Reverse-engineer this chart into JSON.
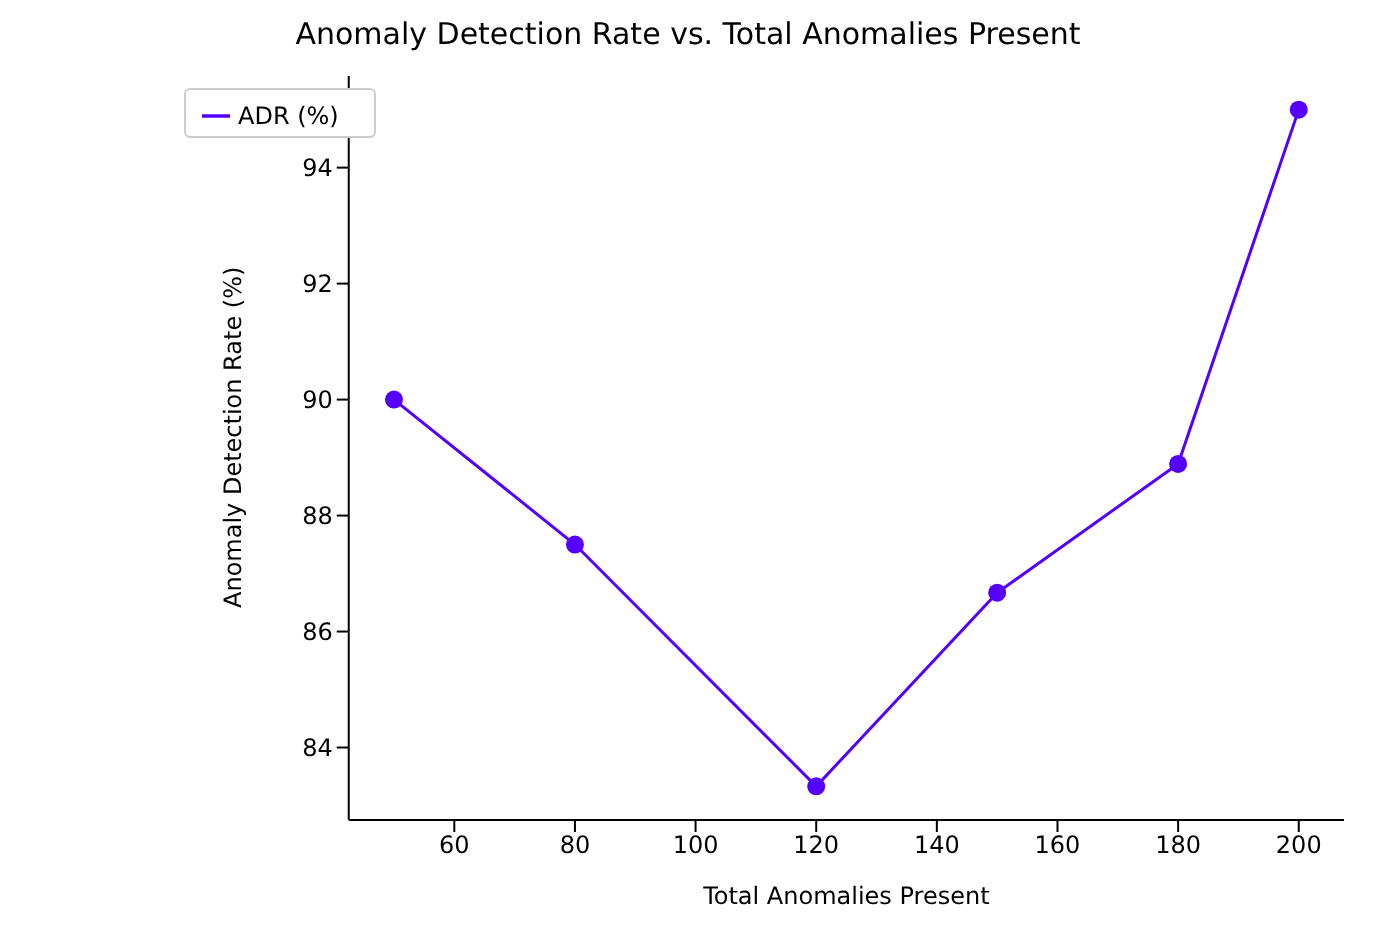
{
  "chart_data": {
    "type": "line",
    "title": "Anomaly Detection Rate vs. Total Anomalies Present",
    "xlabel": "Total Anomalies Present",
    "ylabel": "Anomaly Detection Rate (%)",
    "x": [
      50,
      80,
      120,
      150,
      180,
      200
    ],
    "series": [
      {
        "name": "ADR (%)",
        "color": "#5500ff",
        "values": [
          90,
          87.5,
          83.33,
          86.67,
          88.89,
          95
        ]
      }
    ],
    "xlim": [
      42.5,
      207.5
    ],
    "xticks": [
      60,
      80,
      100,
      120,
      140,
      160,
      180,
      200
    ],
    "ylim": [
      82.75,
      95.58
    ],
    "yticks": [
      84,
      86,
      88,
      90,
      92,
      94
    ],
    "marker": "circle",
    "line_style": "solid",
    "legend": "top left",
    "grid": false
  }
}
